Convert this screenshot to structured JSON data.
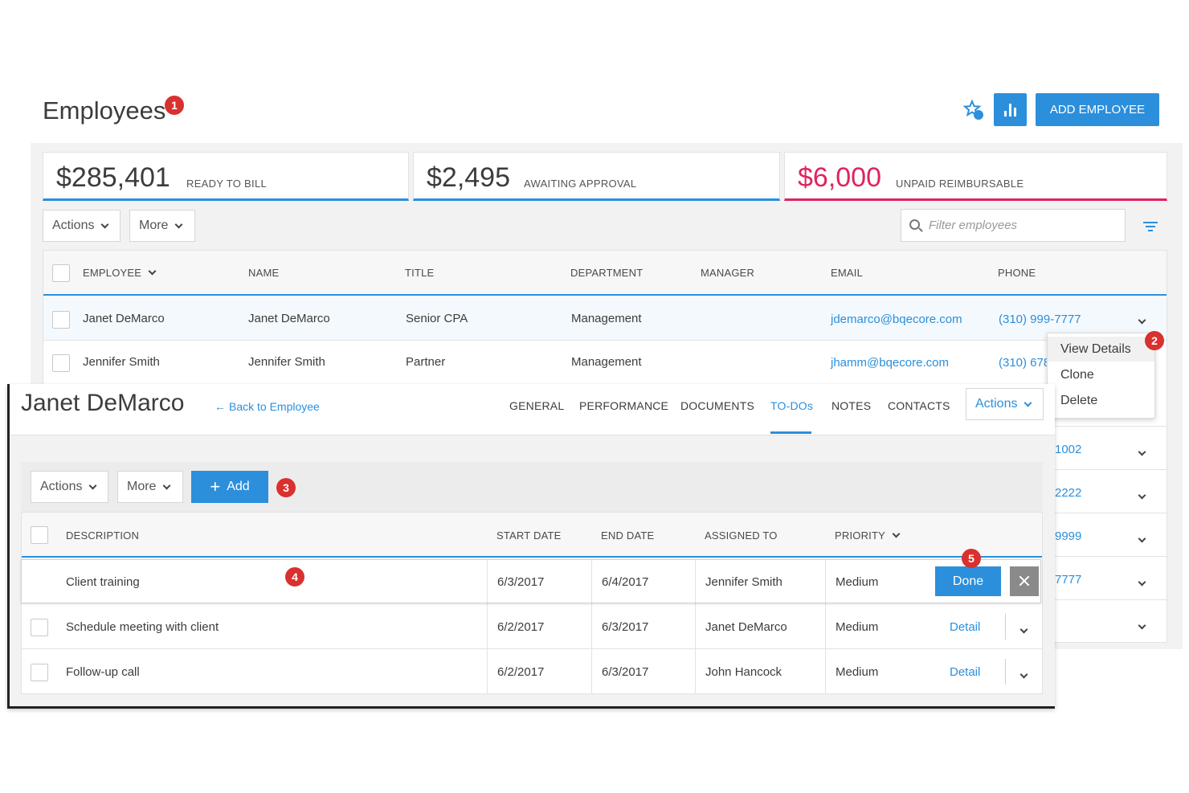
{
  "employees_page": {
    "title": "Employees",
    "badge1": "1",
    "add_button": "ADD EMPLOYEE",
    "stats": [
      {
        "value": "$285,401",
        "label": "READY TO BILL"
      },
      {
        "value": "$2,495",
        "label": "AWAITING APPROVAL"
      },
      {
        "value": "$6,000",
        "label": "UNPAID REIMBURSABLE"
      }
    ],
    "actions_label": "Actions",
    "more_label": "More",
    "filter_placeholder": "Filter employees",
    "columns": [
      "EMPLOYEE",
      "NAME",
      "TITLE",
      "DEPARTMENT",
      "MANAGER",
      "EMAIL",
      "PHONE"
    ],
    "rows": [
      {
        "employee": "Janet DeMarco",
        "name": "Janet DeMarco",
        "title": "Senior CPA",
        "department": "Management",
        "manager": "",
        "email": "jdemarco@bqecore.com",
        "phone": "(310) 999-7777"
      },
      {
        "employee": "Jennifer Smith",
        "name": "Jennifer Smith",
        "title": "Partner",
        "department": "Management",
        "manager": "",
        "email": "jhamm@bqecore.com",
        "phone": "(310) 678"
      }
    ],
    "partial_phones": [
      "1002",
      "2222",
      "9999",
      "7777"
    ],
    "row_menu": {
      "badge": "2",
      "items": [
        "View Details",
        "Clone",
        "Delete"
      ]
    }
  },
  "detail_panel": {
    "title": "Janet DeMarco",
    "back_link": "Back to Employee",
    "tabs": [
      "GENERAL",
      "PERFORMANCE",
      "DOCUMENTS",
      "TO-DOs",
      "NOTES",
      "CONTACTS"
    ],
    "active_tab": "TO-DOs",
    "actions_label": "Actions",
    "toolbar": {
      "actions": "Actions",
      "more": "More",
      "add": "Add",
      "badge3": "3"
    },
    "columns": [
      "DESCRIPTION",
      "START DATE",
      "END DATE",
      "ASSIGNED TO",
      "PRIORITY"
    ],
    "todos": [
      {
        "description": "Client training",
        "start": "6/3/2017",
        "end": "6/4/2017",
        "assigned": "Jennifer Smith",
        "priority": "Medium",
        "action": "Done"
      },
      {
        "description": "Schedule meeting with client",
        "start": "6/2/2017",
        "end": "6/3/2017",
        "assigned": "Janet DeMarco",
        "priority": "Medium",
        "action": "Detail"
      },
      {
        "description": "Follow-up call",
        "start": "6/2/2017",
        "end": "6/3/2017",
        "assigned": "John Hancock",
        "priority": "Medium",
        "action": "Detail"
      }
    ],
    "badge4": "4",
    "badge5": "5"
  },
  "colors": {
    "accent": "#2b8fdc",
    "alert": "#e0245e",
    "badge": "#d9312f"
  }
}
